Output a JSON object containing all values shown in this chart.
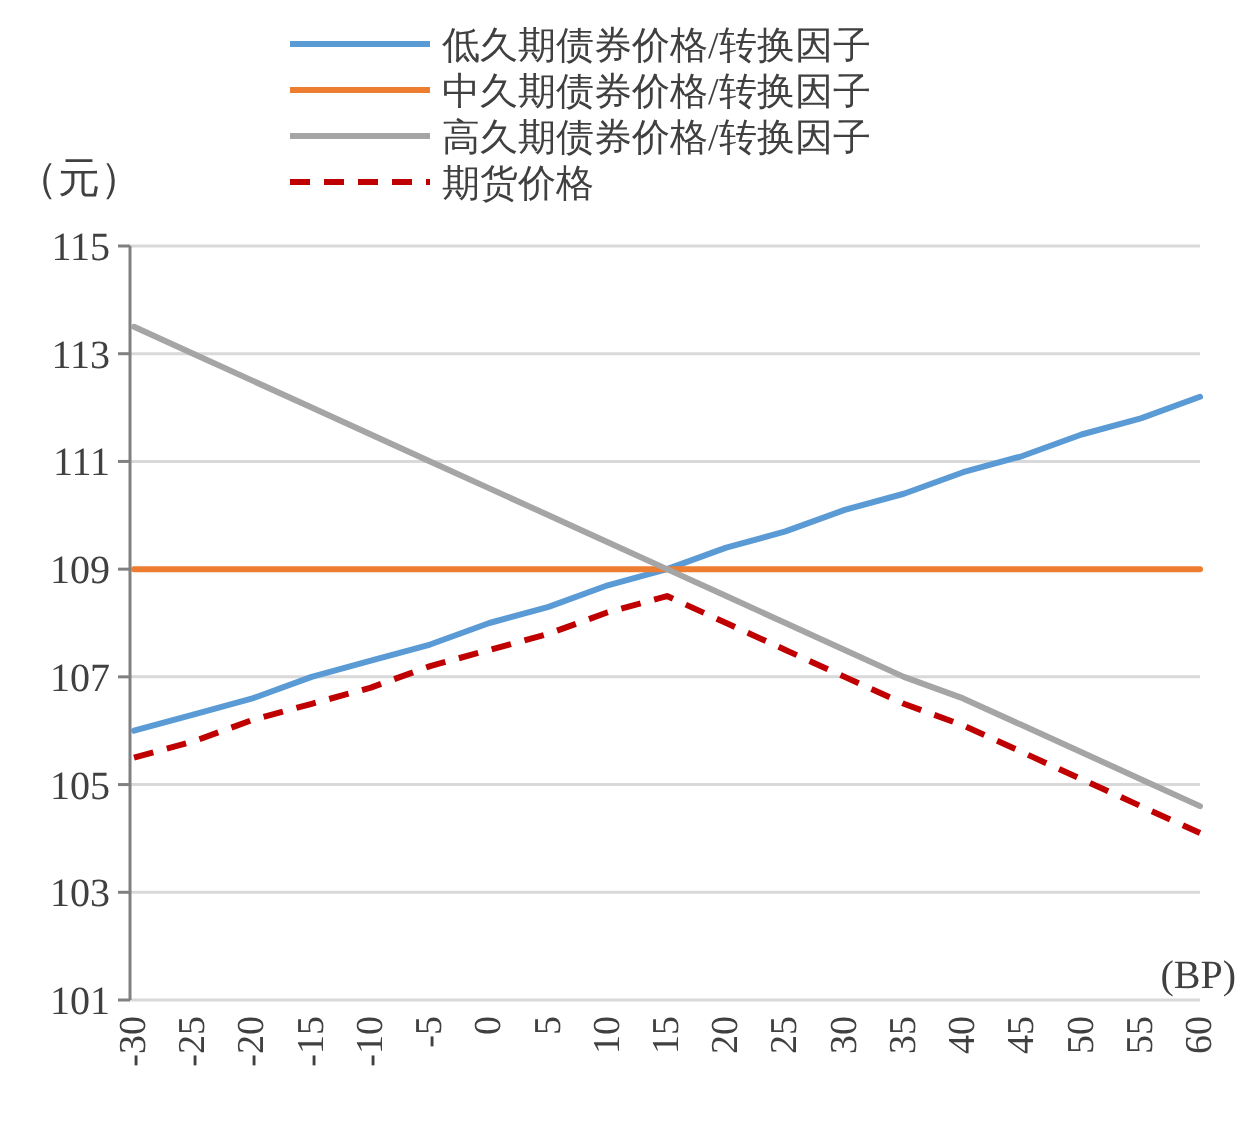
{
  "chart_data": {
    "type": "line",
    "ylabel": "（元）",
    "xlabel": "(BP)",
    "categories": [
      "-30",
      "-25",
      "-20",
      "-15",
      "-10",
      "-5",
      "0",
      "5",
      "10",
      "15",
      "20",
      "25",
      "30",
      "35",
      "40",
      "45",
      "50",
      "55",
      "60"
    ],
    "series": [
      {
        "name": "低久期债券价格/转换因子",
        "color": "#5b9bd5",
        "line_style": "solid",
        "values": [
          106.0,
          106.3,
          106.6,
          107.0,
          107.3,
          107.6,
          108.0,
          108.3,
          108.7,
          109.0,
          109.4,
          109.7,
          110.1,
          110.4,
          110.8,
          111.1,
          111.5,
          111.8,
          112.2
        ]
      },
      {
        "name": "中久期债券价格/转换因子",
        "color": "#ed7d31",
        "line_style": "solid",
        "values": [
          109.0,
          109.0,
          109.0,
          109.0,
          109.0,
          109.0,
          109.0,
          109.0,
          109.0,
          109.0,
          109.0,
          109.0,
          109.0,
          109.0,
          109.0,
          109.0,
          109.0,
          109.0,
          109.0
        ]
      },
      {
        "name": "高久期债券价格/转换因子",
        "color": "#a5a5a5",
        "line_style": "solid",
        "values": [
          113.5,
          113.0,
          112.5,
          112.0,
          111.5,
          111.0,
          110.5,
          110.0,
          109.5,
          109.0,
          108.5,
          108.0,
          107.5,
          107.0,
          106.6,
          106.1,
          105.6,
          105.1,
          104.6
        ]
      },
      {
        "name": "期货价格",
        "color": "#c00000",
        "line_style": "dashed",
        "values": [
          105.5,
          105.8,
          106.2,
          106.5,
          106.8,
          107.2,
          107.5,
          107.8,
          108.2,
          108.5,
          108.0,
          107.5,
          107.0,
          106.5,
          106.1,
          105.6,
          105.1,
          104.6,
          104.1
        ]
      }
    ],
    "ylim": [
      101,
      115
    ],
    "yticks": [
      101,
      103,
      105,
      107,
      109,
      111,
      113,
      115
    ],
    "grid": "y",
    "legend": "top"
  }
}
